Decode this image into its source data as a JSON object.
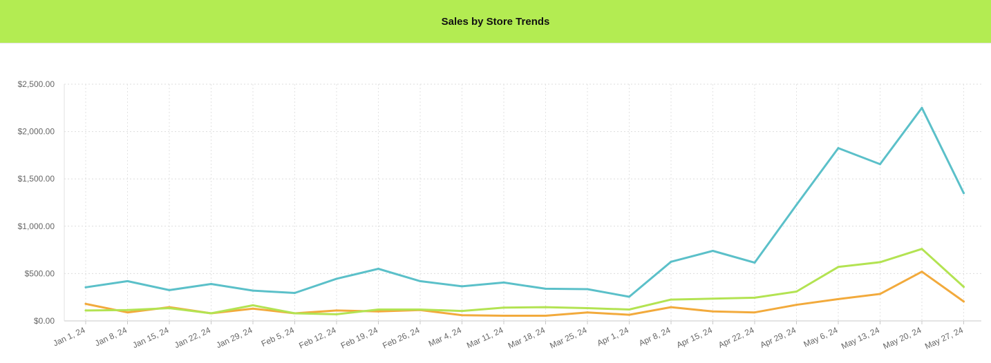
{
  "header": {
    "title": "Sales by Store Trends",
    "background_color": "#b3ec52"
  },
  "chart_data": {
    "type": "line",
    "title": "Sales by Store Trends",
    "xlabel": "",
    "ylabel": "",
    "ylim": [
      0,
      2500
    ],
    "y_ticks": [
      0,
      500,
      1000,
      1500,
      2000,
      2500
    ],
    "y_tick_labels": [
      "$0.00",
      "$500.00",
      "$1,000.00",
      "$1,500.00",
      "$2,000.00",
      "$2,500.00"
    ],
    "grid": true,
    "legend": "none",
    "categories": [
      "Jan 1, 24",
      "Jan 8, 24",
      "Jan 15, 24",
      "Jan 22, 24",
      "Jan 29, 24",
      "Feb 5, 24",
      "Feb 12, 24",
      "Feb 19, 24",
      "Feb 26, 24",
      "Mar 4, 24",
      "Mar 11, 24",
      "Mar 18, 24",
      "Mar 25, 24",
      "Apr 1, 24",
      "Apr 8, 24",
      "Apr 15, 24",
      "Apr 22, 24",
      "Apr 29, 24",
      "May 6, 24",
      "May 13, 24",
      "May 20, 24",
      "May 27, 24"
    ],
    "series": [
      {
        "color": "#5bc0c9",
        "values": [
          355,
          420,
          325,
          390,
          320,
          295,
          445,
          550,
          420,
          365,
          405,
          340,
          335,
          255,
          625,
          740,
          615,
          1225,
          1825,
          1655,
          2250,
          1350
        ]
      },
      {
        "color": "#b3e352",
        "values": [
          110,
          115,
          135,
          80,
          165,
          80,
          70,
          120,
          120,
          105,
          140,
          145,
          135,
          120,
          225,
          235,
          245,
          310,
          570,
          620,
          760,
          360
        ]
      },
      {
        "color": "#f2aa3c",
        "values": [
          180,
          90,
          145,
          80,
          130,
          80,
          110,
          100,
          115,
          60,
          55,
          55,
          90,
          65,
          145,
          100,
          90,
          170,
          230,
          285,
          520,
          205
        ]
      }
    ]
  }
}
